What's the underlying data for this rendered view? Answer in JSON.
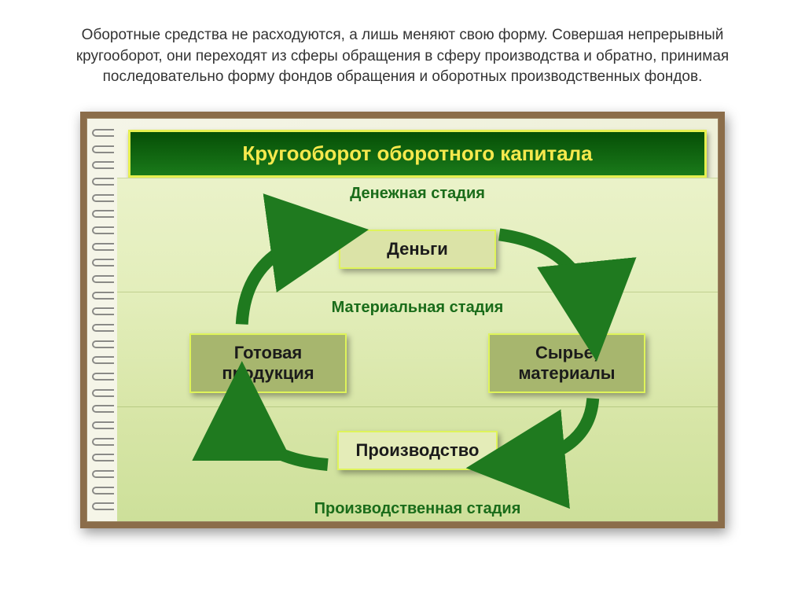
{
  "description": "Оборотные средства не расходуются, а лишь меняют свою форму. Совершая непрерывный кругооборот, они переходят из сферы обращения в сферу производства и обратно, принимая последовательно форму фондов обращения и оборотных производственных фондов.",
  "diagram": {
    "type": "flowchart",
    "title": "Кругооборот оборотного капитала",
    "title_style": {
      "bg_gradient_from": "#064f06",
      "bg_gradient_to": "#1a7a1a",
      "color": "#f6e94d",
      "border_color": "#e6f050"
    },
    "stages": [
      {
        "key": "money",
        "label": "Денежная стадия",
        "label_color": "#1a6c1a",
        "bg": "linear-gradient(180deg,#eaf2c9 0%,#e3eebb 100%)",
        "nodes": [
          {
            "key": "money-node",
            "text": "Деньги",
            "bg": "#dbe3a7",
            "border": "#dff45a",
            "color": "#1b1b1b"
          }
        ]
      },
      {
        "key": "material",
        "label": "Материальная стадия",
        "label_color": "#1a6c1a",
        "bg": "linear-gradient(180deg,#e3eebb 0%,#d8e6a8 100%)",
        "nodes": [
          {
            "key": "finished-goods",
            "text": "Готовая продукция",
            "bg": "#a7b66e",
            "border": "#dff45a",
            "color": "#1b1b1b"
          },
          {
            "key": "raw-materials",
            "text": "Сырье, материалы",
            "bg": "#a7b66e",
            "border": "#dff45a",
            "color": "#1b1b1b"
          }
        ]
      },
      {
        "key": "production",
        "label": "Производственная стадия",
        "label_color": "#1a6c1a",
        "bg": "linear-gradient(180deg,#d8e6a8 0%,#cde09a 100%)",
        "nodes": [
          {
            "key": "production-node",
            "text": "Производство",
            "bg": "#e4ecb8",
            "border": "#dff45a",
            "color": "#1b1b1b"
          }
        ],
        "label_position": "bottom"
      }
    ],
    "arrow_color": "#1f7a1f",
    "frame_color": "#8b6d4a",
    "spiral_rings": 24
  }
}
